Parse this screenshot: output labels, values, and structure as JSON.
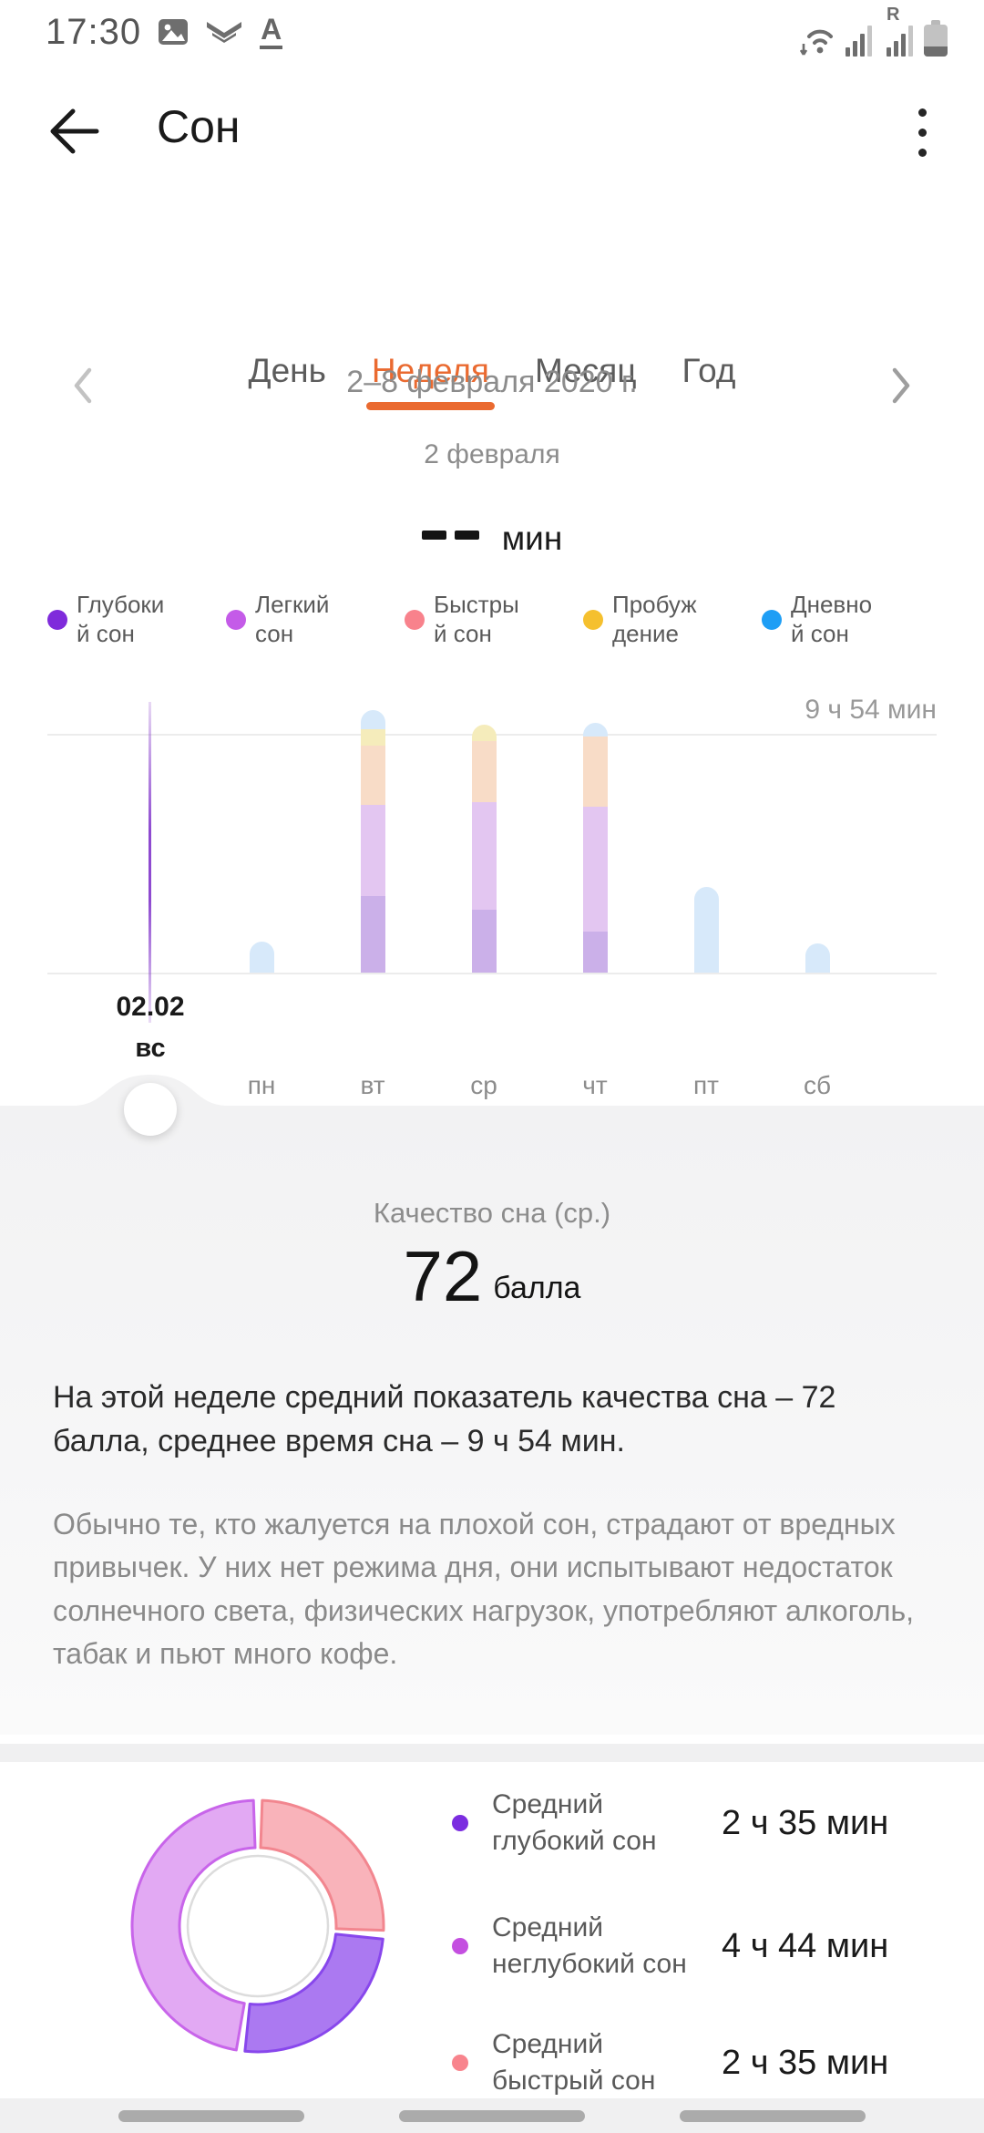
{
  "status_bar": {
    "time": "17:30",
    "left_icons": [
      "gallery-icon",
      "swiftkey-icon",
      "font-a-icon"
    ],
    "right_icons": [
      "wifi-transfer-icon",
      "signal-icon",
      "signal-roaming-icon",
      "battery-icon"
    ],
    "roaming_label": "R"
  },
  "header": {
    "title": "Сон"
  },
  "tabs": [
    {
      "label": "День",
      "active": false
    },
    {
      "label": "Неделя",
      "active": true
    },
    {
      "label": "Месяц",
      "active": false
    },
    {
      "label": "Год",
      "active": false
    }
  ],
  "date_nav": {
    "range": "2–8 февраля 2020 г.",
    "selected_day": "2 февраля"
  },
  "duration": {
    "value_placeholder": "--",
    "unit": "мин"
  },
  "sleep_legend": [
    {
      "label": "Глубокий сон",
      "line1": "Глубоки",
      "line2": "й сон",
      "color": "#7F2BDB"
    },
    {
      "label": "Легкий сон",
      "line1": "Легкий",
      "line2": "сон",
      "color": "#C45BE8"
    },
    {
      "label": "Быстрый сон",
      "line1": "Быстры",
      "line2": "й сон",
      "color": "#F8828C"
    },
    {
      "label": "Пробуждение",
      "line1": "Пробуж",
      "line2": "дение",
      "color": "#F5C02E"
    },
    {
      "label": "Дневной сон",
      "line1": "Дневно",
      "line2": "й сон",
      "color": "#1E9EF5"
    }
  ],
  "chart_data": [
    {
      "type": "bar",
      "title": "Сон за неделю (стек по фазам, минуты)",
      "categories": [
        "вс",
        "пн",
        "вт",
        "ср",
        "чт",
        "пт",
        "сб"
      ],
      "selected_index": 0,
      "selected_date_label": "02.02",
      "y_gridline_label": "9 ч 54 мин",
      "y_gridline_minutes": 594,
      "ylim": [
        0,
        660
      ],
      "grid": "horizontal-only",
      "series": [
        {
          "name": "Глубокий сон",
          "color": "#CBB0E9",
          "values": [
            0,
            0,
            190,
            156,
            102,
            0,
            0
          ]
        },
        {
          "name": "Легкий сон",
          "color": "#E3C6F1",
          "values": [
            0,
            0,
            227,
            268,
            310,
            0,
            0
          ]
        },
        {
          "name": "Быстрый сон",
          "color": "#F8DCC7",
          "values": [
            0,
            0,
            147,
            152,
            175,
            0,
            0
          ]
        },
        {
          "name": "Пробуждение",
          "color": "#F5ECBB",
          "values": [
            0,
            0,
            41,
            41,
            0,
            0,
            0
          ]
        },
        {
          "name": "Дневной сон",
          "color": "#D7E9FA",
          "values": [
            0,
            77,
            48,
            0,
            34,
            213,
            73
          ]
        }
      ]
    },
    {
      "type": "donut",
      "title": "Средняя структура сна",
      "total_minutes": 594,
      "start_at_top": true,
      "clockwise": true,
      "gap_degrees": 4,
      "slices": [
        {
          "label": "Средний быстрый сон",
          "value": "2 ч 35 мин",
          "minutes": 155,
          "fill": "#F9B3BA",
          "stroke": "#F2868F",
          "dot": "#F8848D"
        },
        {
          "label": "Средний глубокий сон",
          "value": "2 ч 35 мин",
          "minutes": 155,
          "fill": "#AB79F1",
          "stroke": "#8847EC",
          "dot": "#7B2DE0"
        },
        {
          "label": "Средний неглубокий сон",
          "value": "4 ч 44 мин",
          "minutes": 284,
          "fill": "#E2A9F3",
          "stroke": "#C865EA",
          "dot": "#C44FE0"
        }
      ],
      "legend_order": [
        1,
        2,
        0
      ]
    }
  ],
  "quality": {
    "label": "Качество сна (ср.)",
    "score": "72",
    "unit": "балла"
  },
  "texts": {
    "headline": "На этой неделе средний показатель качества сна – 72 балла, среднее время сна – 9 ч 54 мин.",
    "body": "Обычно те, кто жалуется на плохой сон, страдают от вредных привычек. У них нет режима дня, они испытывают недостаток солнечного света, физических нагрузок, употребляют алкоголь, табак и пьют много кофе."
  },
  "colors": {
    "accent": "#EA6A30",
    "selected_line": "#7A2BC8",
    "section_bg": "#F2F2F3"
  }
}
